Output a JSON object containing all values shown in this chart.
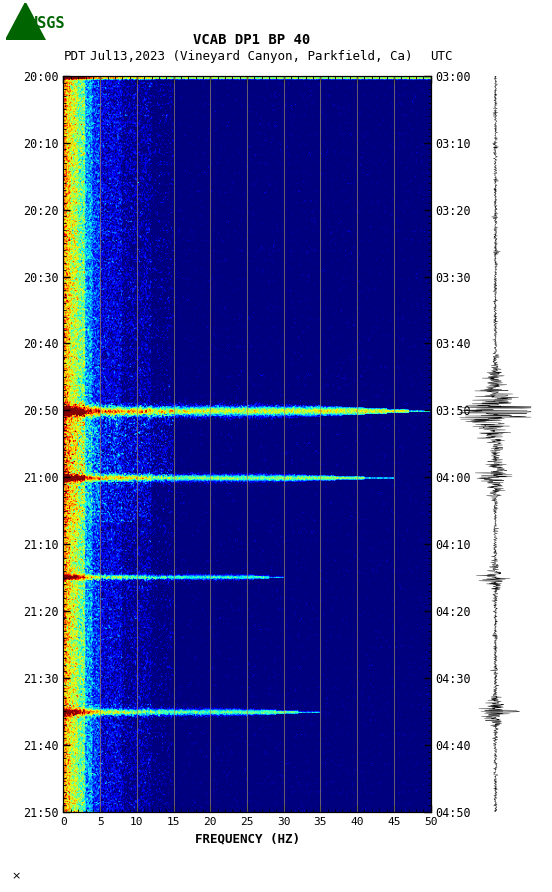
{
  "title_line1": "VCAB DP1 BP 40",
  "title_line2_left": "PDT",
  "title_line2_mid": "Jul13,2023 (Vineyard Canyon, Parkfield, Ca)",
  "title_line2_right": "UTC",
  "xlabel": "FREQUENCY (HZ)",
  "freq_min": 0,
  "freq_max": 50,
  "time_labels_left": [
    "20:00",
    "20:10",
    "20:20",
    "20:30",
    "20:40",
    "20:50",
    "21:00",
    "21:10",
    "21:20",
    "21:30",
    "21:40",
    "21:50"
  ],
  "time_labels_right": [
    "03:00",
    "03:10",
    "03:20",
    "03:30",
    "03:40",
    "03:50",
    "04:00",
    "04:10",
    "04:20",
    "04:30",
    "04:40",
    "04:50"
  ],
  "freq_ticks": [
    0,
    5,
    10,
    15,
    20,
    25,
    30,
    35,
    40,
    45,
    50
  ],
  "vertical_lines_freq": [
    5,
    10,
    15,
    20,
    25,
    30,
    35,
    40,
    45
  ],
  "background_color": "#ffffff",
  "colormap": "jet",
  "vmin": -5,
  "vmax": 55,
  "figsize": [
    5.52,
    8.92
  ],
  "dpi": 100,
  "n_time": 660,
  "n_freq": 500
}
